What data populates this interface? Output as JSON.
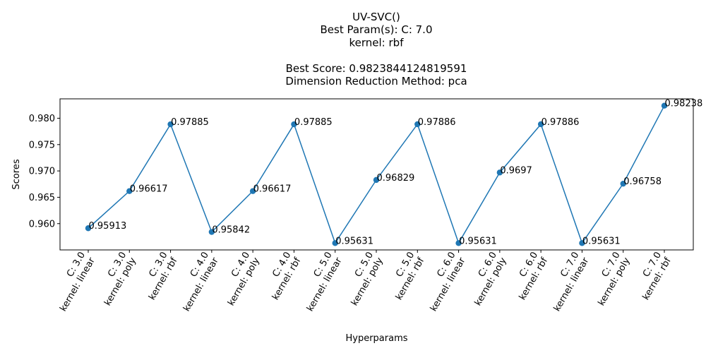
{
  "chart_data": {
    "type": "line",
    "title_lines": [
      "UV-SVC()",
      "Best Param(s): C: 7.0",
      "kernel: rbf",
      "",
      "Best Score: 0.9823844124819591",
      "Dimension Reduction Method: pca"
    ],
    "xlabel": "Hyperparams",
    "ylabel": "Scores",
    "categories": [
      [
        "C: 3.0",
        "kernel: linear"
      ],
      [
        "C: 3.0",
        "kernel: poly"
      ],
      [
        "C: 3.0",
        "kernel: rbf"
      ],
      [
        "C: 4.0",
        "kernel: linear"
      ],
      [
        "C: 4.0",
        "kernel: poly"
      ],
      [
        "C: 4.0",
        "kernel: rbf"
      ],
      [
        "C: 5.0",
        "kernel: linear"
      ],
      [
        "C: 5.0",
        "kernel: poly"
      ],
      [
        "C: 5.0",
        "kernel: rbf"
      ],
      [
        "C: 6.0",
        "kernel: linear"
      ],
      [
        "C: 6.0",
        "kernel: poly"
      ],
      [
        "C: 6.0",
        "kernel: rbf"
      ],
      [
        "C: 7.0",
        "kernel: linear"
      ],
      [
        "C: 7.0",
        "kernel: poly"
      ],
      [
        "C: 7.0",
        "kernel: rbf"
      ]
    ],
    "values": [
      0.95913,
      0.96617,
      0.97885,
      0.95842,
      0.96617,
      0.97885,
      0.95631,
      0.96829,
      0.97886,
      0.95631,
      0.9697,
      0.97886,
      0.95631,
      0.96758,
      0.98238
    ],
    "value_labels": [
      "0.95913",
      "0.96617",
      "0.97885",
      "0.95842",
      "0.96617",
      "0.97885",
      "0.95631",
      "0.96829",
      "0.97886",
      "0.95631",
      "0.9697",
      "0.97886",
      "0.95631",
      "0.96758",
      "0.98238"
    ],
    "ylim": [
      0.95501,
      0.98368
    ],
    "yticks": [
      0.96,
      0.965,
      0.97,
      0.975,
      0.98
    ],
    "ytick_labels": [
      "0.960",
      "0.965",
      "0.970",
      "0.975",
      "0.980"
    ],
    "grid": false,
    "series_color": "#1f77b4"
  }
}
